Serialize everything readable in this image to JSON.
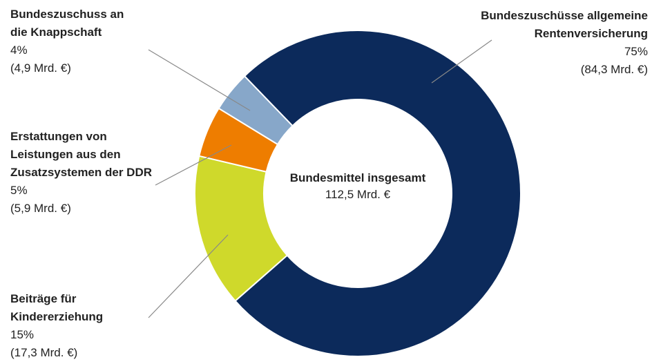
{
  "chart_data": {
    "type": "donut",
    "categories": [
      "Bundeszuschüsse allgemeine Rentenversicherung",
      "Beiträge für Kindererziehung",
      "Erstattungen von Leistungen aus den Zusatzsystemen der DDR",
      "Bundeszuschuss an die Knappschaft"
    ],
    "values": [
      75,
      15,
      5,
      4
    ],
    "value_labels": [
      "75%",
      "15%",
      "5%",
      "4%"
    ],
    "amounts": [
      84.3,
      17.3,
      5.9,
      4.9
    ],
    "amount_labels": [
      "(84,3 Mrd. €)",
      "(17,3 Mrd. €)",
      "(5,9 Mrd. €)",
      "(4,9 Mrd. €)"
    ],
    "colors": [
      "#0c2a5b",
      "#cfd92b",
      "#ee7d00",
      "#87a7c9"
    ],
    "center_title": "Bundesmittel insgesamt",
    "total": 112.5,
    "total_label": "112,5 Mrd. €"
  }
}
